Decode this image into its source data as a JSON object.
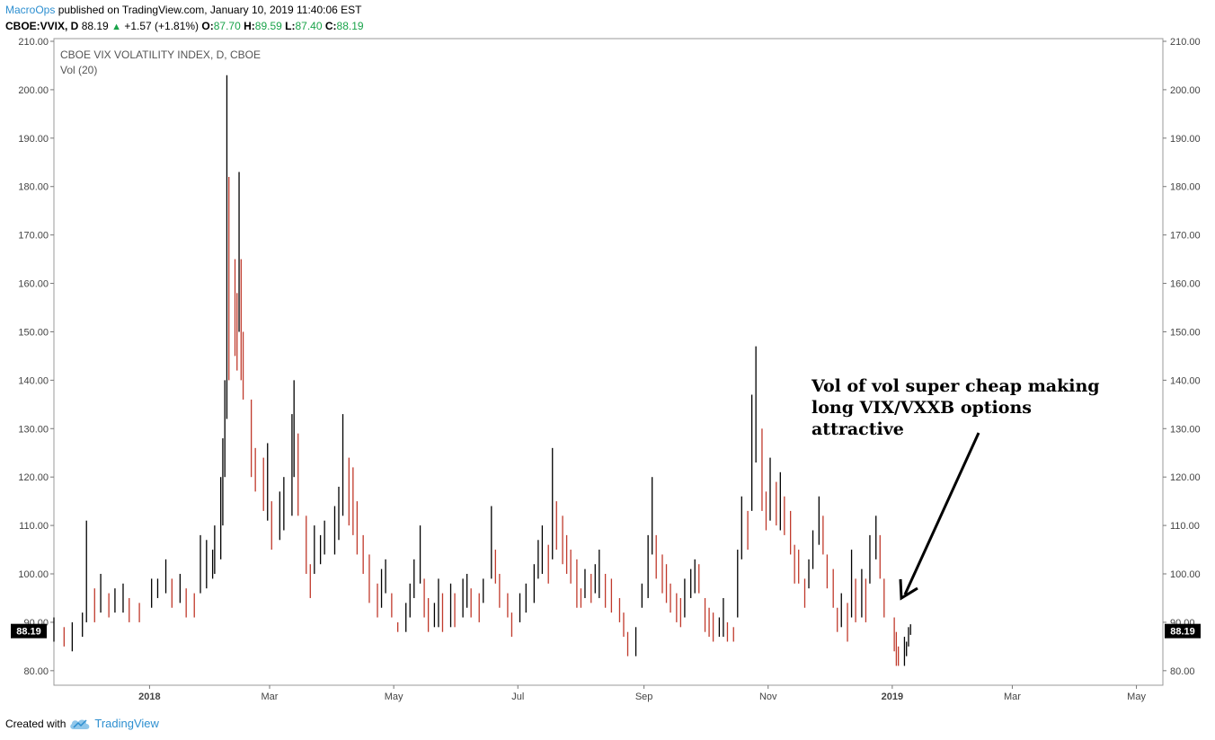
{
  "header": {
    "author": "MacroOps",
    "published_text": " published on TradingView.com, January 10, 2019 11:40:06 EST",
    "symbol": "CBOE:VVIX, D",
    "last": "88.19",
    "change": "+1.57 (+1.81%)",
    "o_label": "O:",
    "o_value": "87.70",
    "h_label": "H:",
    "h_value": "89.59",
    "l_label": "L:",
    "l_value": "87.40",
    "c_label": "C:",
    "c_value": "88.19"
  },
  "footer": {
    "created_with": "Created with",
    "brand": "TradingView"
  },
  "annotation": {
    "lines": [
      "Vol of vol super cheap making",
      "long VIX/VXXB options",
      "attractive"
    ]
  },
  "colors": {
    "up": "#000000",
    "down": "#c0392b",
    "axis": "#555555",
    "price_label_bg": "#000000",
    "accent": "#2d8fd0",
    "green": "#1aa34a"
  },
  "chart_data": {
    "type": "ohlc",
    "title": "CBOE VIX VOLATILITY INDEX, D, CBOE",
    "indicator": "Vol (20)",
    "ylim": [
      77,
      210
    ],
    "yticks": [
      80,
      90,
      100,
      110,
      120,
      130,
      140,
      150,
      160,
      170,
      180,
      190,
      200,
      210
    ],
    "ytick_labels": [
      "80.00",
      "90.00",
      "100.00",
      "110.00",
      "120.00",
      "130.00",
      "140.00",
      "150.00",
      "160.00",
      "170.00",
      "180.00",
      "190.00",
      "200.00",
      "210.00"
    ],
    "xlim": [
      "2017-11-15",
      "2019-05-14"
    ],
    "xticks": [
      "2018-01-01",
      "2018-03-01",
      "2018-05-01",
      "2018-07-01",
      "2018-09-01",
      "2018-11-01",
      "2019-01-01",
      "2019-03-01",
      "2019-05-01"
    ],
    "xtick_labels": [
      "2018",
      "Mar",
      "May",
      "Jul",
      "Sep",
      "Nov",
      "2019",
      "Mar",
      "May"
    ],
    "last_price": 88.19,
    "last_price_label": "88.19",
    "grid": false,
    "bars": [
      [
        "2017-11-15",
        91,
        86
      ],
      [
        "2017-11-20",
        89,
        85
      ],
      [
        "2017-11-24",
        90,
        84
      ],
      [
        "2017-11-29",
        92,
        87
      ],
      [
        "2017-12-01",
        111,
        90
      ],
      [
        "2017-12-05",
        97,
        90
      ],
      [
        "2017-12-08",
        100,
        92
      ],
      [
        "2017-12-12",
        96,
        91
      ],
      [
        "2017-12-15",
        97,
        92
      ],
      [
        "2017-12-19",
        98,
        92
      ],
      [
        "2017-12-22",
        95,
        90
      ],
      [
        "2017-12-27",
        94,
        90
      ],
      [
        "2018-01-02",
        99,
        93
      ],
      [
        "2018-01-05",
        99,
        95
      ],
      [
        "2018-01-09",
        103,
        96
      ],
      [
        "2018-01-12",
        99,
        93
      ],
      [
        "2018-01-16",
        100,
        94
      ],
      [
        "2018-01-19",
        97,
        91
      ],
      [
        "2018-01-23",
        96,
        91
      ],
      [
        "2018-01-26",
        108,
        96
      ],
      [
        "2018-01-29",
        107,
        97
      ],
      [
        "2018-02-01",
        105,
        99
      ],
      [
        "2018-02-02",
        110,
        100
      ],
      [
        "2018-02-05",
        120,
        103
      ],
      [
        "2018-02-06",
        128,
        110
      ],
      [
        "2018-02-07",
        140,
        120
      ],
      [
        "2018-02-08",
        203,
        132
      ],
      [
        "2018-02-09",
        182,
        140
      ],
      [
        "2018-02-12",
        165,
        145
      ],
      [
        "2018-02-13",
        158,
        142
      ],
      [
        "2018-02-14",
        183,
        150
      ],
      [
        "2018-02-15",
        165,
        140
      ],
      [
        "2018-02-16",
        150,
        136
      ],
      [
        "2018-02-20",
        136,
        120
      ],
      [
        "2018-02-22",
        126,
        117
      ],
      [
        "2018-02-26",
        124,
        113
      ],
      [
        "2018-02-28",
        127,
        111
      ],
      [
        "2018-03-02",
        115,
        105
      ],
      [
        "2018-03-06",
        117,
        107
      ],
      [
        "2018-03-08",
        120,
        109
      ],
      [
        "2018-03-12",
        133,
        112
      ],
      [
        "2018-03-13",
        140,
        120
      ],
      [
        "2018-03-15",
        129,
        112
      ],
      [
        "2018-03-19",
        112,
        100
      ],
      [
        "2018-03-21",
        102,
        95
      ],
      [
        "2018-03-23",
        110,
        100
      ],
      [
        "2018-03-26",
        108,
        102
      ],
      [
        "2018-03-28",
        111,
        104
      ],
      [
        "2018-04-02",
        114,
        104
      ],
      [
        "2018-04-04",
        118,
        107
      ],
      [
        "2018-04-06",
        133,
        112
      ],
      [
        "2018-04-09",
        124,
        110
      ],
      [
        "2018-04-11",
        122,
        108
      ],
      [
        "2018-04-13",
        115,
        104
      ],
      [
        "2018-04-16",
        108,
        100
      ],
      [
        "2018-04-19",
        104,
        94
      ],
      [
        "2018-04-23",
        98,
        91
      ],
      [
        "2018-04-25",
        101,
        93
      ],
      [
        "2018-04-27",
        103,
        96
      ],
      [
        "2018-04-30",
        96,
        91
      ],
      [
        "2018-05-03",
        90,
        88
      ],
      [
        "2018-05-07",
        94,
        88
      ],
      [
        "2018-05-09",
        98,
        91
      ],
      [
        "2018-05-11",
        103,
        95
      ],
      [
        "2018-05-14",
        110,
        98
      ],
      [
        "2018-05-16",
        99,
        91
      ],
      [
        "2018-05-18",
        95,
        88
      ],
      [
        "2018-05-21",
        94,
        89
      ],
      [
        "2018-05-23",
        99,
        89
      ],
      [
        "2018-05-25",
        96,
        88
      ],
      [
        "2018-05-29",
        98,
        89
      ],
      [
        "2018-05-31",
        96,
        89
      ],
      [
        "2018-06-04",
        99,
        91
      ],
      [
        "2018-06-06",
        100,
        93
      ],
      [
        "2018-06-08",
        97,
        91
      ],
      [
        "2018-06-12",
        96,
        90
      ],
      [
        "2018-06-14",
        99,
        94
      ],
      [
        "2018-06-18",
        114,
        99
      ],
      [
        "2018-06-20",
        105,
        98
      ],
      [
        "2018-06-22",
        100,
        93
      ],
      [
        "2018-06-26",
        96,
        91
      ],
      [
        "2018-06-28",
        92,
        87
      ],
      [
        "2018-07-02",
        96,
        90
      ],
      [
        "2018-07-05",
        98,
        92
      ],
      [
        "2018-07-09",
        102,
        94
      ],
      [
        "2018-07-11",
        107,
        99
      ],
      [
        "2018-07-13",
        110,
        100
      ],
      [
        "2018-07-16",
        106,
        98
      ],
      [
        "2018-07-18",
        126,
        103
      ],
      [
        "2018-07-20",
        115,
        105
      ],
      [
        "2018-07-23",
        112,
        102
      ],
      [
        "2018-07-25",
        108,
        100
      ],
      [
        "2018-07-27",
        105,
        98
      ],
      [
        "2018-07-30",
        103,
        93
      ],
      [
        "2018-08-01",
        97,
        93
      ],
      [
        "2018-08-03",
        101,
        95
      ],
      [
        "2018-08-06",
        100,
        94
      ],
      [
        "2018-08-08",
        102,
        96
      ],
      [
        "2018-08-10",
        105,
        95
      ],
      [
        "2018-08-13",
        100,
        93
      ],
      [
        "2018-08-16",
        99,
        92
      ],
      [
        "2018-08-20",
        95,
        90
      ],
      [
        "2018-08-22",
        92,
        87
      ],
      [
        "2018-08-24",
        88,
        83
      ],
      [
        "2018-08-28",
        89,
        83
      ],
      [
        "2018-08-31",
        98,
        93
      ],
      [
        "2018-09-03",
        108,
        95
      ],
      [
        "2018-09-05",
        120,
        104
      ],
      [
        "2018-09-07",
        108,
        99
      ],
      [
        "2018-09-10",
        104,
        96
      ],
      [
        "2018-09-12",
        102,
        94
      ],
      [
        "2018-09-14",
        98,
        92
      ],
      [
        "2018-09-17",
        96,
        90
      ],
      [
        "2018-09-19",
        95,
        89
      ],
      [
        "2018-09-21",
        99,
        91
      ],
      [
        "2018-09-24",
        101,
        95
      ],
      [
        "2018-09-26",
        103,
        96
      ],
      [
        "2018-09-28",
        102,
        96
      ],
      [
        "2018-10-01",
        95,
        88
      ],
      [
        "2018-10-03",
        93,
        87
      ],
      [
        "2018-10-05",
        92,
        86
      ],
      [
        "2018-10-08",
        91,
        87
      ],
      [
        "2018-10-10",
        95,
        87
      ],
      [
        "2018-10-12",
        90,
        86
      ],
      [
        "2018-10-15",
        89,
        86
      ],
      [
        "2018-10-17",
        105,
        91
      ],
      [
        "2018-10-19",
        116,
        103
      ],
      [
        "2018-10-22",
        113,
        105
      ],
      [
        "2018-10-24",
        137,
        113
      ],
      [
        "2018-10-26",
        147,
        123
      ],
      [
        "2018-10-29",
        130,
        113
      ],
      [
        "2018-10-31",
        117,
        109
      ],
      [
        "2018-11-02",
        124,
        111
      ],
      [
        "2018-11-05",
        119,
        110
      ],
      [
        "2018-11-07",
        121,
        109
      ],
      [
        "2018-11-09",
        116,
        108
      ],
      [
        "2018-11-12",
        113,
        104
      ],
      [
        "2018-11-14",
        106,
        98
      ],
      [
        "2018-11-16",
        105,
        98
      ],
      [
        "2018-11-19",
        99,
        93
      ],
      [
        "2018-11-21",
        103,
        97
      ],
      [
        "2018-11-23",
        109,
        101
      ],
      [
        "2018-11-26",
        116,
        106
      ],
      [
        "2018-11-28",
        112,
        104
      ],
      [
        "2018-11-30",
        104,
        97
      ],
      [
        "2018-12-03",
        101,
        93
      ],
      [
        "2018-12-05",
        93,
        88
      ],
      [
        "2018-12-07",
        96,
        89
      ],
      [
        "2018-12-10",
        94,
        86
      ],
      [
        "2018-12-12",
        105,
        91
      ],
      [
        "2018-12-14",
        99,
        90
      ],
      [
        "2018-12-17",
        101,
        91
      ],
      [
        "2018-12-19",
        99,
        90
      ],
      [
        "2018-12-21",
        108,
        98
      ],
      [
        "2018-12-24",
        112,
        103
      ],
      [
        "2018-12-26",
        108,
        99
      ],
      [
        "2018-12-28",
        99,
        91
      ],
      [
        "2019-01-02",
        91,
        84
      ],
      [
        "2019-01-03",
        88,
        81
      ],
      [
        "2019-01-04",
        85,
        81
      ],
      [
        "2019-01-07",
        87,
        81
      ],
      [
        "2019-01-08",
        86,
        83
      ],
      [
        "2019-01-09",
        89,
        85
      ],
      [
        "2019-01-10",
        89.59,
        87.4
      ]
    ]
  }
}
